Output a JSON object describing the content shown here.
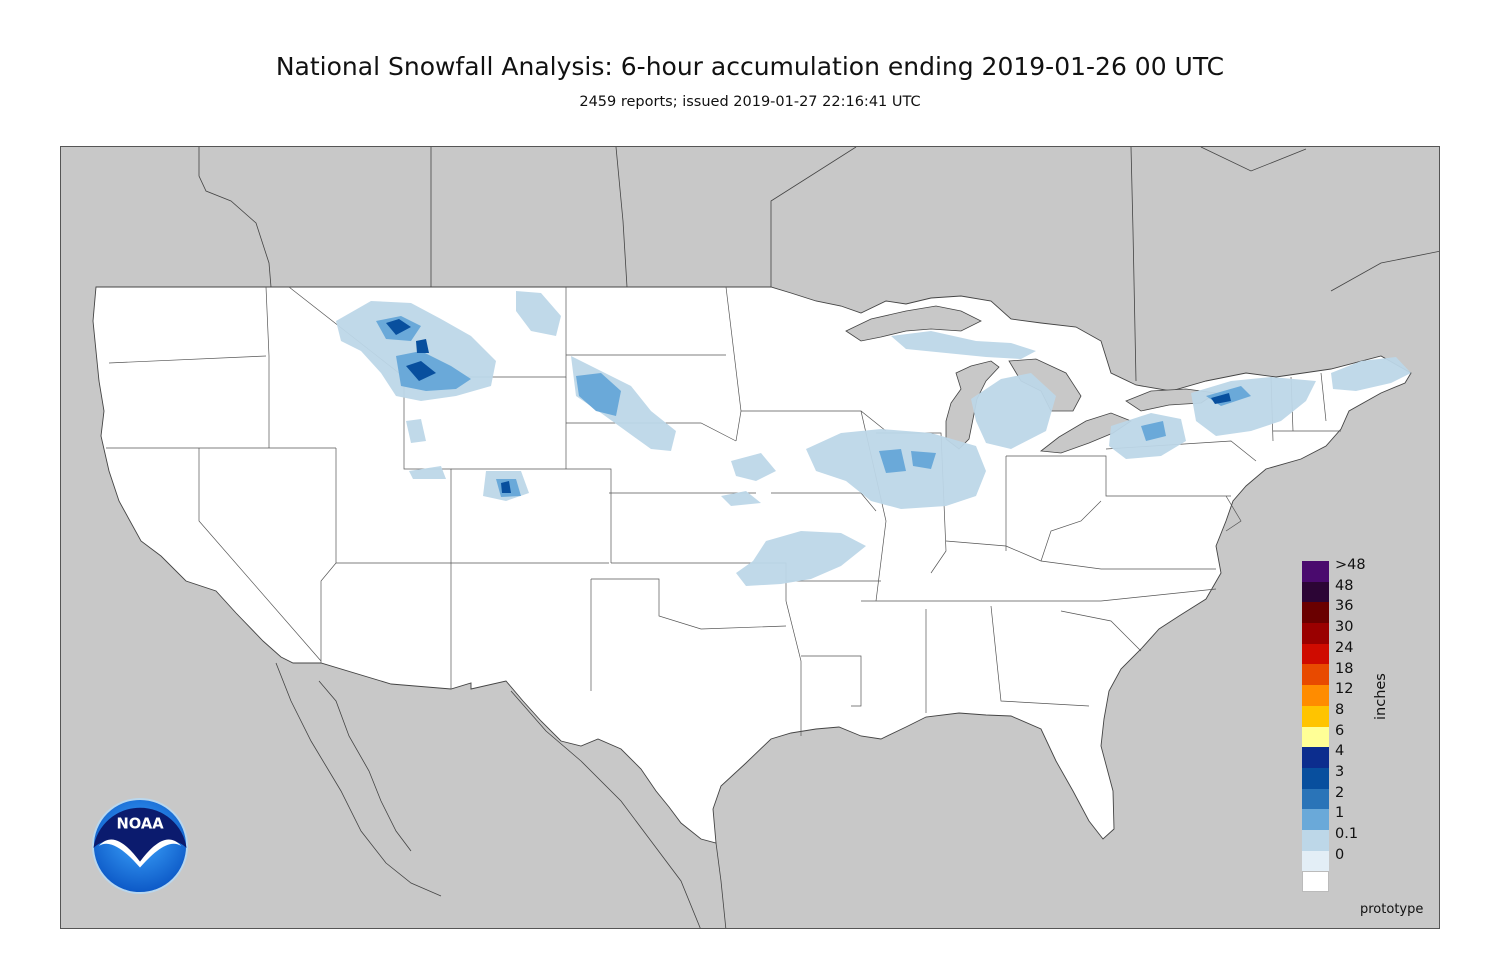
{
  "header": {
    "title": "National Snowfall Analysis: 6-hour accumulation ending 2019-01-26 00 UTC",
    "subtitle": "2459 reports; issued 2019-01-27 22:16:41 UTC"
  },
  "legend": {
    "unit": "inches",
    "bins": [
      {
        "label": ">48",
        "color": "#4a0a6e"
      },
      {
        "label": "48",
        "color": "#2c0535"
      },
      {
        "label": "36",
        "color": "#6a0000"
      },
      {
        "label": "30",
        "color": "#9a0000"
      },
      {
        "label": "24",
        "color": "#cf0b00"
      },
      {
        "label": "18",
        "color": "#e84a00"
      },
      {
        "label": "12",
        "color": "#ff8c00"
      },
      {
        "label": "8",
        "color": "#ffc400"
      },
      {
        "label": "6",
        "color": "#ffff96"
      },
      {
        "label": "4",
        "color": "#0c2d8e"
      },
      {
        "label": "3",
        "color": "#084f9e"
      },
      {
        "label": "2",
        "color": "#2a74b8"
      },
      {
        "label": "1",
        "color": "#6aa9d9"
      },
      {
        "label": "0.1",
        "color": "#bdd7e8"
      },
      {
        "label": "0",
        "color": "#e3eef6"
      }
    ],
    "base_color": "#ffffff"
  },
  "footer": {
    "prototype_label": "prototype"
  },
  "logo": {
    "text": "NOAA"
  },
  "map_colors": {
    "land_outside": "#c8c8c8",
    "conus": "#ffffff",
    "borders": "#444444"
  }
}
